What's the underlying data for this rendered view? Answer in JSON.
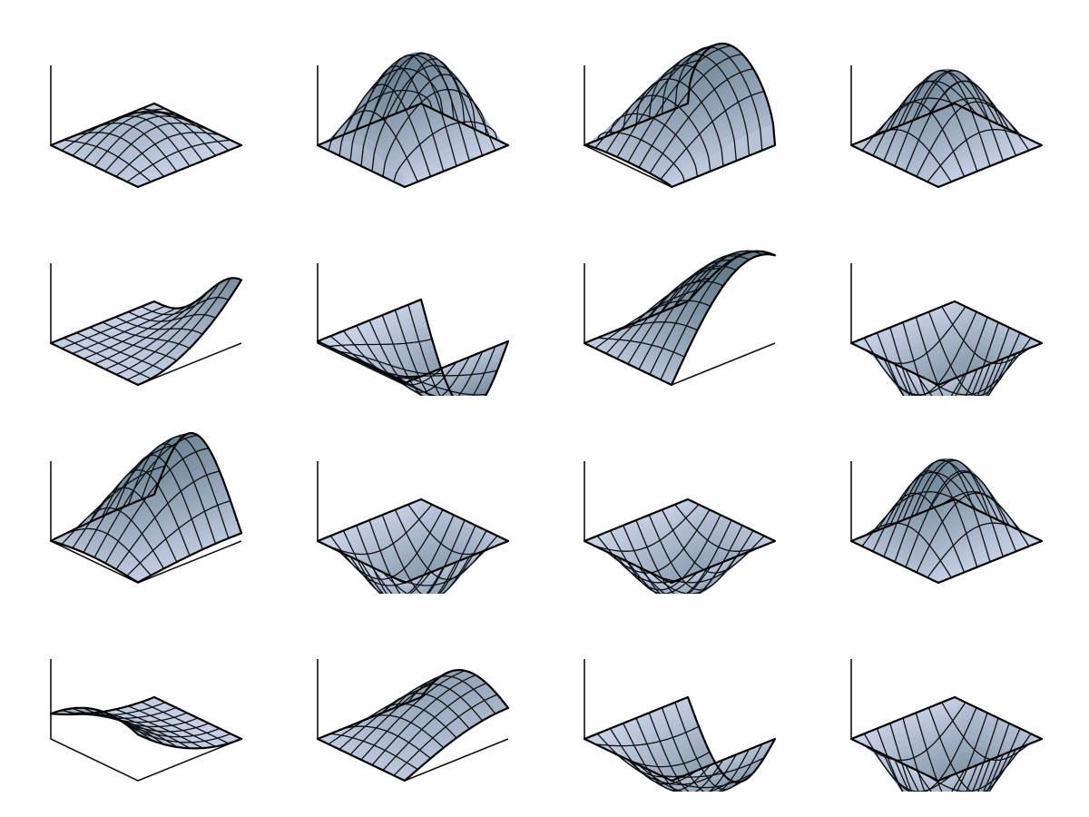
{
  "diagram": {
    "description_kind": "grid of 3D mesh surface plots",
    "rows": 4,
    "columns": 4,
    "surface_color_dark": "#3b5966",
    "surface_color_light": "#c9d2e6",
    "mesh_line_color": "#0b0f14",
    "axis_line_color": "#111111",
    "background_color": "#ffffff",
    "mesh_divisions": 8,
    "panels": [
      {
        "name": "surface-1-1",
        "shape": "bump",
        "direction": "both",
        "amplitude": 0.45
      },
      {
        "name": "surface-1-2",
        "shape": "bump",
        "direction": "both",
        "amplitude": 1.0
      },
      {
        "name": "surface-1-3",
        "shape": "bump",
        "direction": "both",
        "amplitude": 1.0
      },
      {
        "name": "surface-1-4",
        "shape": "bump",
        "direction": "both",
        "amplitude": 1.0
      },
      {
        "name": "surface-2-1",
        "shape": "rising-ramp",
        "direction": "x",
        "amplitude": 0.9
      },
      {
        "name": "surface-2-2",
        "shape": "trough",
        "direction": "x",
        "amplitude": 1.0
      },
      {
        "name": "surface-2-3",
        "shape": "bump",
        "direction": "x",
        "amplitude": 1.0
      },
      {
        "name": "surface-2-4",
        "shape": "dip",
        "direction": "both",
        "amplitude": 1.0
      },
      {
        "name": "surface-3-1",
        "shape": "bump",
        "direction": "both",
        "amplitude": 1.0
      },
      {
        "name": "surface-3-2",
        "shape": "valley",
        "direction": "both",
        "amplitude": 1.0
      },
      {
        "name": "surface-3-3",
        "shape": "valley",
        "direction": "both",
        "amplitude": 1.0
      },
      {
        "name": "surface-3-4",
        "shape": "bump",
        "direction": "both",
        "amplitude": 1.0
      },
      {
        "name": "surface-4-1",
        "shape": "falling-ramp",
        "direction": "x",
        "amplitude": 0.9
      },
      {
        "name": "surface-4-2",
        "shape": "bump",
        "direction": "y",
        "amplitude": 1.0
      },
      {
        "name": "surface-4-3",
        "shape": "trough",
        "direction": "y",
        "amplitude": 1.0
      },
      {
        "name": "surface-4-4",
        "shape": "dip",
        "direction": "both",
        "amplitude": 1.0
      }
    ]
  }
}
